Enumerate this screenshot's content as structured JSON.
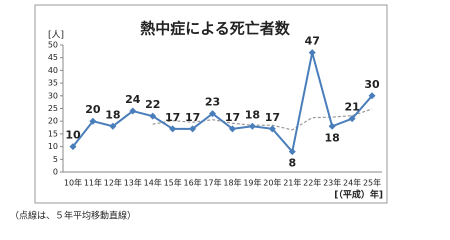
{
  "chart_data": {
    "type": "line",
    "title": "熱中症による死亡者数",
    "y_label": "[人]",
    "x_label": "[（平成）年]",
    "note": "（点線は、５年平均移動直線）",
    "categories": [
      "10年",
      "11年",
      "12年",
      "13年",
      "14年",
      "15年",
      "16年",
      "17年",
      "18年",
      "19年",
      "20年",
      "21年",
      "22年",
      "23年",
      "24年",
      "25年"
    ],
    "series": [
      {
        "color": "#4a7ebb",
        "values": [
          10,
          20,
          18,
          24,
          22,
          17,
          17,
          23,
          17,
          18,
          17,
          8,
          47,
          18,
          21,
          30
        ],
        "data_labels": true
      },
      {
        "color": "#999999",
        "dashed": true,
        "values": [
          null,
          null,
          null,
          null,
          18.8,
          20.2,
          19.6,
          20.6,
          19.2,
          18.4,
          18.4,
          16.6,
          21.4,
          21.6,
          22.2,
          24.8
        ]
      }
    ],
    "ylim": [
      0,
      50
    ],
    "yticks": [
      0,
      5,
      10,
      15,
      20,
      25,
      30,
      35,
      40,
      45,
      50
    ]
  }
}
